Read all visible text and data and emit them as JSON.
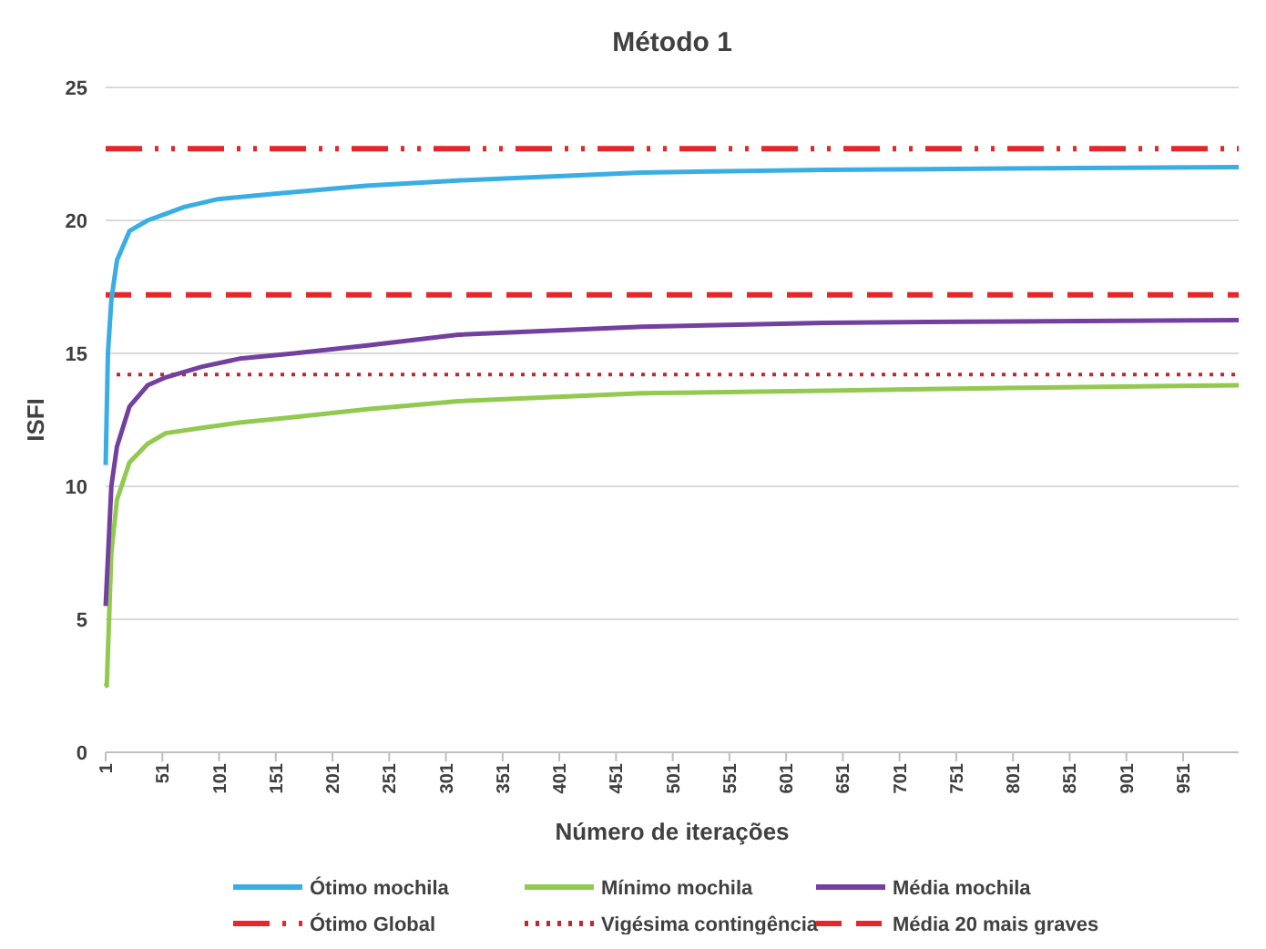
{
  "chart_data": {
    "type": "line",
    "title": "Método 1",
    "xlabel": "Número de iterações",
    "ylabel": "ISFI",
    "xlim": [
      1,
      1000
    ],
    "xticks": [
      1,
      51,
      101,
      151,
      201,
      251,
      301,
      351,
      401,
      451,
      501,
      551,
      601,
      651,
      701,
      751,
      801,
      851,
      901,
      951
    ],
    "ylim": [
      0,
      25
    ],
    "yticks": [
      0,
      5,
      10,
      15,
      20,
      25
    ],
    "grid": "y",
    "legend": "bottom",
    "series": [
      {
        "name": "Ótimo mochila",
        "color": "#3aaee4",
        "x": [
          1,
          3,
          6,
          11,
          22,
          38,
          51,
          70,
          100,
          150,
          230,
          311,
          473,
          634,
          796,
          1000
        ],
        "values": [
          10.8,
          15,
          17,
          18.5,
          19.6,
          20,
          20.2,
          20.5,
          20.8,
          21,
          21.3,
          21.5,
          21.8,
          21.9,
          21.95,
          22
        ]
      },
      {
        "name": "Mínimo mochila",
        "color": "#92c94f",
        "x": [
          1,
          2,
          6,
          11,
          22,
          38,
          54,
          86,
          119,
          167,
          232,
          312,
          474,
          635,
          796,
          1000
        ],
        "values": [
          2.6,
          2.5,
          7.5,
          9.5,
          10.9,
          11.6,
          12,
          12.2,
          12.4,
          12.6,
          12.9,
          13.2,
          13.5,
          13.6,
          13.7,
          13.8
        ]
      },
      {
        "name": "Média mochila",
        "color": "#7340a0",
        "x": [
          1,
          6,
          11,
          22,
          38,
          54,
          86,
          119,
          167,
          232,
          312,
          474,
          635,
          796,
          1000
        ],
        "values": [
          5.5,
          10,
          11.5,
          13,
          13.8,
          14.1,
          14.5,
          14.8,
          15,
          15.3,
          15.7,
          16,
          16.15,
          16.2,
          16.25
        ]
      }
    ],
    "ref_lines": [
      {
        "axis": "y",
        "value": 22.7,
        "label": "Ótimo Global",
        "color": "#e8262a",
        "line_style": "dashdot"
      },
      {
        "axis": "y",
        "value": 14.2,
        "label": "Vigésima contingência",
        "color": "#c0282e",
        "line_style": "dotted"
      },
      {
        "axis": "y",
        "value": 17.2,
        "label": "Média 20 mais graves",
        "color": "#e8262a",
        "line_style": "dashed"
      }
    ]
  }
}
